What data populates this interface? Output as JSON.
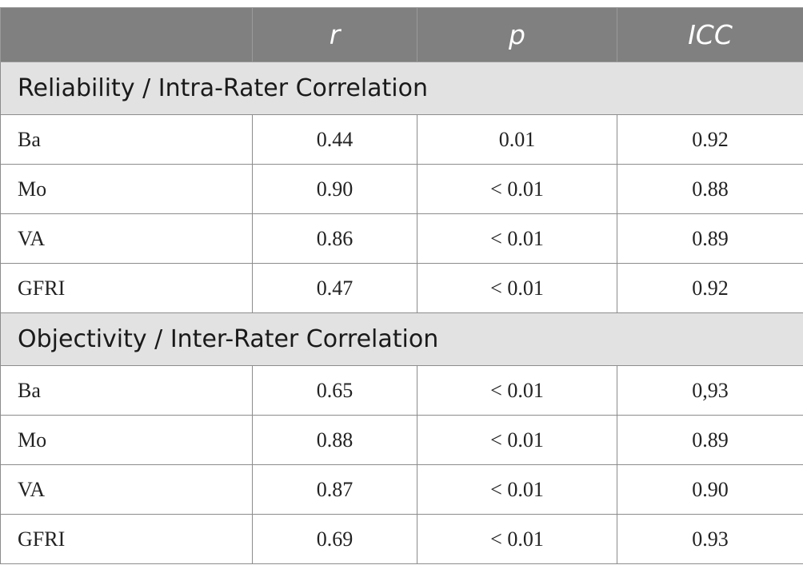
{
  "header": {
    "blank": "",
    "col_r": "r",
    "col_p": "p",
    "col_icc": "ICC"
  },
  "sections": [
    {
      "title": "Reliability / Intra-Rater Correlation",
      "rows": [
        {
          "label": "Ba",
          "r": "0.44",
          "p": "0.01",
          "icc": "0.92"
        },
        {
          "label": "Mo",
          "r": "0.90",
          "p": "< 0.01",
          "icc": "0.88"
        },
        {
          "label": "VA",
          "r": "0.86",
          "p": "< 0.01",
          "icc": "0.89"
        },
        {
          "label": "GFRI",
          "r": "0.47",
          "p": "< 0.01",
          "icc": "0.92"
        }
      ]
    },
    {
      "title": "Objectivity / Inter-Rater Correlation",
      "rows": [
        {
          "label": "Ba",
          "r": "0.65",
          "p": "< 0.01",
          "icc": "0,93"
        },
        {
          "label": "Mo",
          "r": "0.88",
          "p": "< 0.01",
          "icc": "0.89"
        },
        {
          "label": "VA",
          "r": "0.87",
          "p": "< 0.01",
          "icc": "0.90"
        },
        {
          "label": "GFRI",
          "r": "0.69",
          "p": "< 0.01",
          "icc": "0.93"
        }
      ]
    }
  ]
}
